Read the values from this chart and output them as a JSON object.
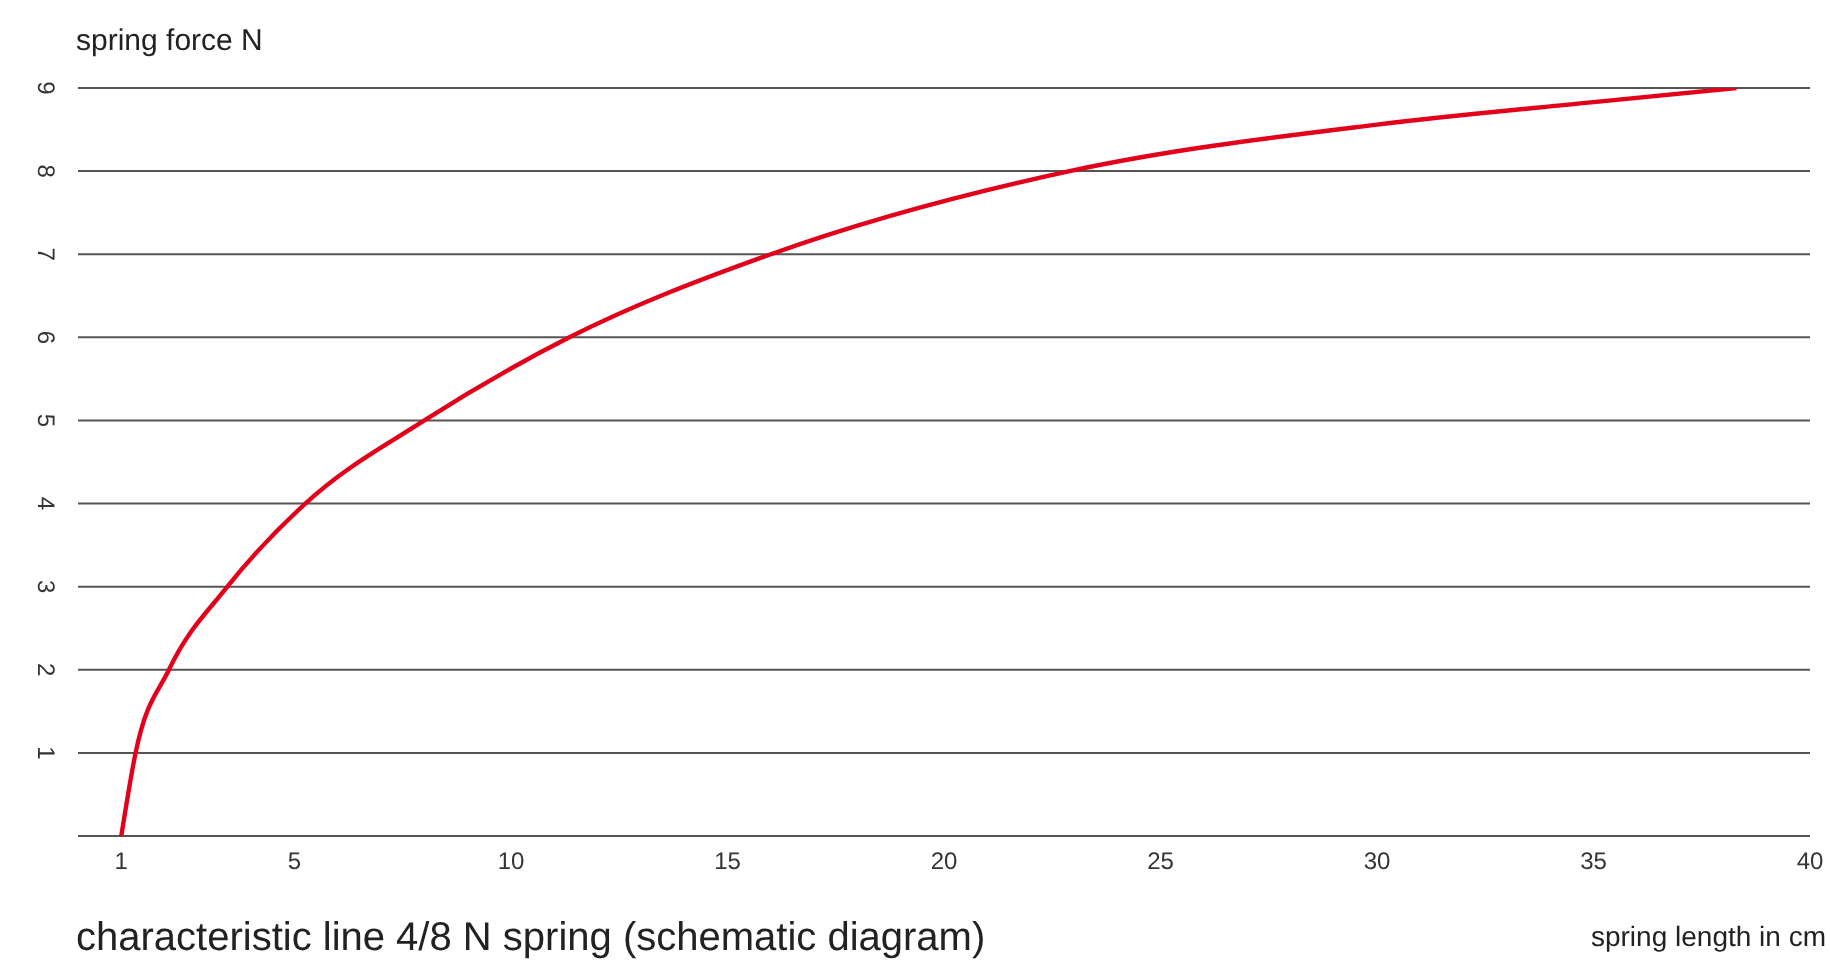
{
  "chart_data": {
    "type": "line",
    "title": "characteristic line 4/8 N spring (schematic diagram)",
    "xlabel": "spring length in cm",
    "ylabel": "spring force N",
    "x": [
      1,
      1.33,
      2.1,
      3.45,
      5.25,
      8,
      11.35,
      16,
      22.9,
      30,
      35,
      38.3
    ],
    "series": [
      {
        "color": "#e2001a",
        "values": [
          0,
          1,
          2,
          3,
          4,
          5,
          6,
          7,
          8,
          8.56,
          8.83,
          9
        ]
      }
    ],
    "xlim": [
      0,
      40
    ],
    "xticks": [
      1,
      5,
      10,
      15,
      20,
      25,
      30,
      35,
      40
    ],
    "ylim": [
      0,
      9
    ],
    "yticks": [
      1,
      2,
      3,
      4,
      5,
      6,
      7,
      8,
      9
    ],
    "grid": "y",
    "marker": "none",
    "line_style": "solid"
  }
}
